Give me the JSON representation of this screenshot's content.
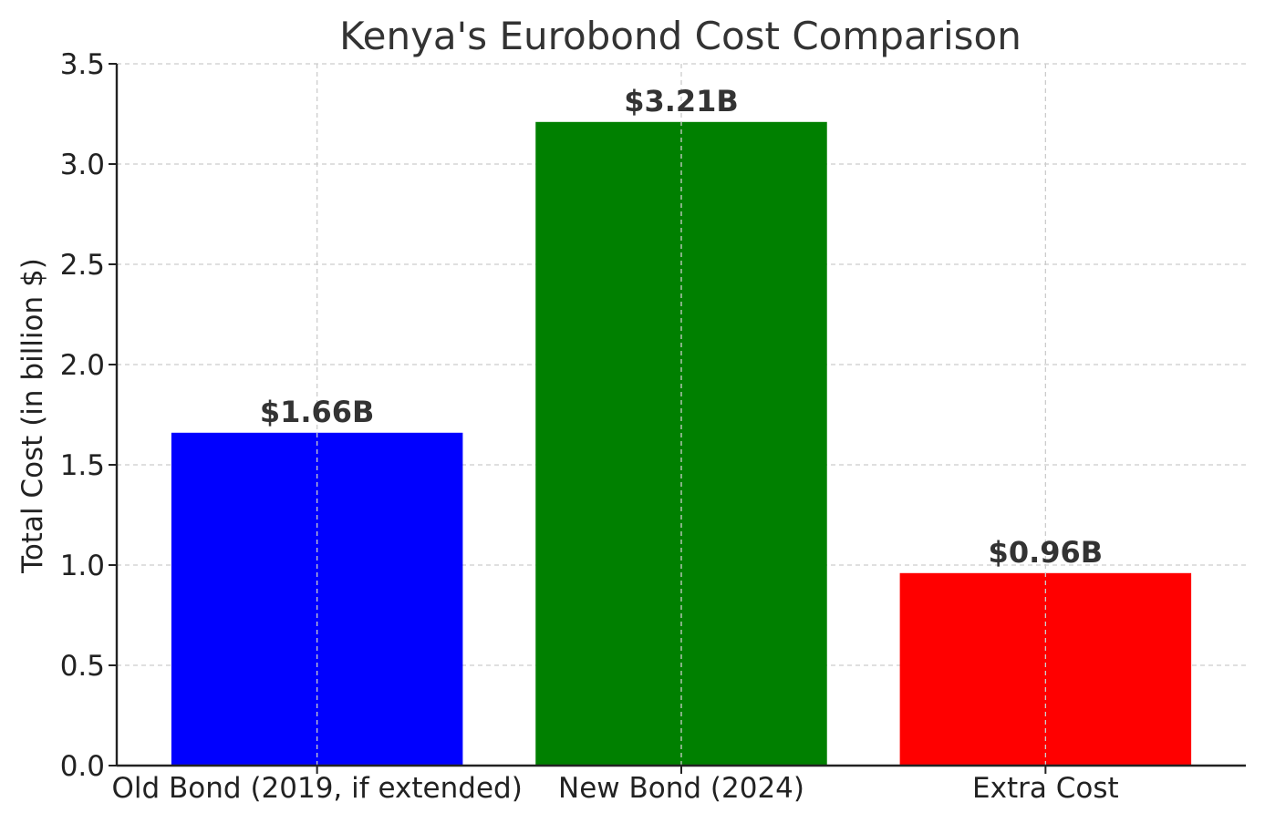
{
  "chart_data": {
    "type": "bar",
    "title": "Kenya's Eurobond Cost Comparison",
    "xlabel": "",
    "ylabel": "Total Cost (in billion $)",
    "categories": [
      "Old Bond (2019, if extended)",
      "New Bond (2024)",
      "Extra Cost"
    ],
    "values": [
      1.66,
      3.21,
      0.96
    ],
    "data_labels": [
      "$1.66B",
      "$3.21B",
      "$0.96B"
    ],
    "colors": [
      "#0000ff",
      "#008000",
      "#ff0000"
    ],
    "ylim": [
      0,
      3.5
    ],
    "yticks": [
      0.0,
      0.5,
      1.0,
      1.5,
      2.0,
      2.5,
      3.0,
      3.5
    ],
    "ytick_labels": [
      "0.0",
      "0.5",
      "1.0",
      "1.5",
      "2.0",
      "2.5",
      "3.0",
      "3.5"
    ],
    "grid": true,
    "legend": "none"
  }
}
